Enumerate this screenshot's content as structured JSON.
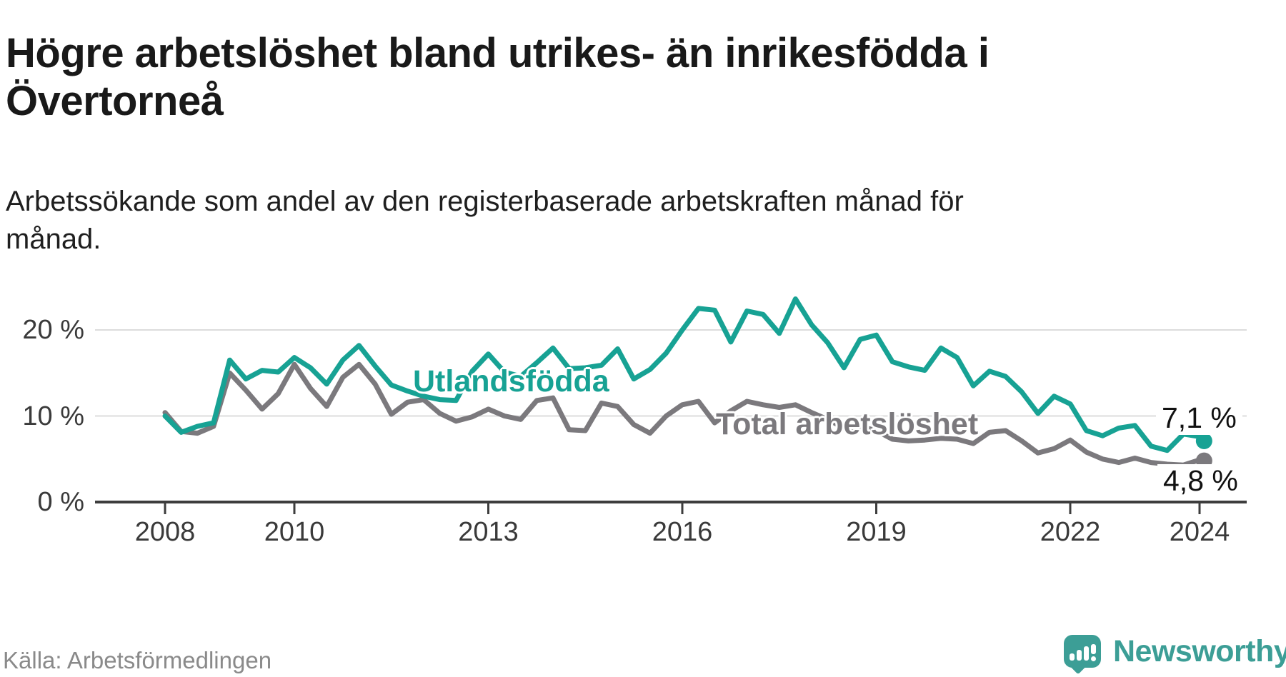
{
  "chart_data": {
    "type": "line",
    "title": "Högre arbetslöshet bland utrikes- än inrikesfödda i Övertorneå",
    "subtitle": "Arbetssökande som andel av den registerbaserade arbetskraften månad för månad.",
    "source": "Källa: Arbetsförmedlingen",
    "unit": "percent of registered labour force",
    "grid": "horizontal",
    "legend_position": "inline-labels",
    "x_ticks": [
      2008,
      2010,
      2013,
      2016,
      2019,
      2022,
      2024
    ],
    "x_tick_labels": [
      "2008",
      "2010",
      "2013",
      "2016",
      "2019",
      "2022",
      "2024"
    ],
    "y_ticks": [
      0,
      10,
      20
    ],
    "y_tick_labels": [
      "0 %",
      "10 %",
      "20 %"
    ],
    "ylim": [
      0,
      24.5
    ],
    "xlim": [
      2007.4,
      2024.8
    ],
    "x": [
      2008,
      2008.25,
      2008.5,
      2008.75,
      2009,
      2009.25,
      2009.5,
      2009.75,
      2010,
      2010.25,
      2010.5,
      2010.75,
      2011,
      2011.25,
      2011.5,
      2011.75,
      2012,
      2012.25,
      2012.5,
      2012.75,
      2013,
      2013.25,
      2013.5,
      2013.75,
      2014,
      2014.25,
      2014.5,
      2014.75,
      2015,
      2015.25,
      2015.5,
      2015.75,
      2016,
      2016.25,
      2016.5,
      2016.75,
      2017,
      2017.25,
      2017.5,
      2017.75,
      2018,
      2018.25,
      2018.5,
      2018.75,
      2019,
      2019.25,
      2019.5,
      2019.75,
      2020,
      2020.25,
      2020.5,
      2020.75,
      2021,
      2021.25,
      2021.5,
      2021.75,
      2022,
      2022.25,
      2022.5,
      2022.75,
      2023,
      2023.25,
      2023.5,
      2023.75,
      2024,
      2024.07
    ],
    "series": [
      {
        "name": "Utlandsfödda",
        "color": "#17a294",
        "end_label": "7,1 %",
        "end_value": 7.1,
        "values": [
          10.0,
          8.1,
          8.8,
          9.2,
          16.5,
          14.3,
          15.3,
          15.1,
          16.8,
          15.6,
          13.7,
          16.5,
          18.2,
          15.8,
          13.6,
          12.9,
          12.3,
          11.9,
          11.8,
          15.2,
          17.2,
          15.1,
          14.6,
          16.2,
          17.9,
          15.5,
          15.6,
          15.9,
          17.8,
          14.3,
          15.4,
          17.3,
          20.0,
          22.5,
          22.3,
          18.6,
          22.2,
          21.8,
          19.6,
          23.6,
          20.6,
          18.5,
          15.6,
          18.9,
          19.4,
          16.3,
          15.7,
          15.3,
          17.9,
          16.8,
          13.5,
          15.2,
          14.6,
          12.8,
          10.3,
          12.3,
          11.4,
          8.3,
          7.7,
          8.6,
          8.9,
          6.5,
          6.0,
          7.9,
          7.6,
          7.1
        ]
      },
      {
        "name": "Total arbetslöshet",
        "color": "#7b797d",
        "end_label": "4,8 %",
        "end_value": 4.8,
        "values": [
          10.4,
          8.2,
          8.0,
          8.8,
          15.0,
          13.0,
          10.8,
          12.6,
          16.0,
          13.2,
          11.1,
          14.5,
          16.0,
          13.7,
          10.2,
          11.6,
          11.9,
          10.3,
          9.4,
          9.9,
          10.8,
          10.0,
          9.6,
          11.8,
          12.1,
          8.4,
          8.3,
          11.5,
          11.1,
          9.0,
          8.0,
          10.0,
          11.3,
          11.7,
          9.2,
          10.6,
          11.7,
          11.3,
          11.0,
          11.3,
          10.4,
          9.6,
          8.6,
          8.8,
          8.3,
          7.3,
          7.1,
          7.2,
          7.4,
          7.3,
          6.8,
          8.1,
          8.3,
          7.1,
          5.7,
          6.2,
          7.2,
          5.8,
          5.0,
          4.6,
          5.1,
          4.6,
          4.4,
          4.3,
          4.9,
          4.8
        ]
      }
    ]
  },
  "branding": {
    "wordmark": "Newsworthy",
    "logo_color": "#3c9e96"
  }
}
